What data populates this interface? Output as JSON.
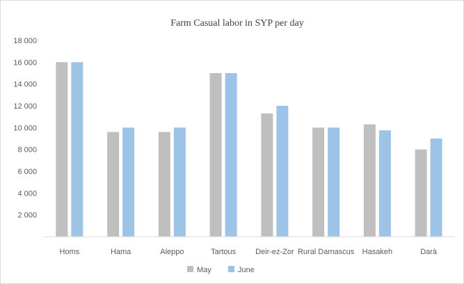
{
  "chart_data": {
    "type": "bar",
    "title": "Farm Casual labor in SYP per day",
    "xlabel": "",
    "ylabel": "",
    "categories": [
      "Homs",
      "Hama",
      "Aleppo",
      "Tartous",
      "Deir-ez-Zor",
      "Rural Damascus",
      "Hasakeh",
      "Darà"
    ],
    "series": [
      {
        "name": "May",
        "color": "#bfbfbf",
        "values": [
          16000,
          9600,
          9600,
          15000,
          11300,
          10000,
          10300,
          8000
        ]
      },
      {
        "name": "June",
        "color": "#9dc3e6",
        "values": [
          16000,
          10000,
          10000,
          15000,
          12000,
          10000,
          9750,
          9000
        ]
      }
    ],
    "ylim": [
      0,
      18000
    ],
    "yticks": [
      2000,
      4000,
      6000,
      8000,
      10000,
      12000,
      14000,
      16000,
      18000
    ],
    "ytick_labels": [
      "2 000",
      "4 000",
      "6 000",
      "8 000",
      "10 000",
      "12 000",
      "14 000",
      "16 000",
      "18 000"
    ],
    "grid": false,
    "legend_position": "bottom"
  }
}
